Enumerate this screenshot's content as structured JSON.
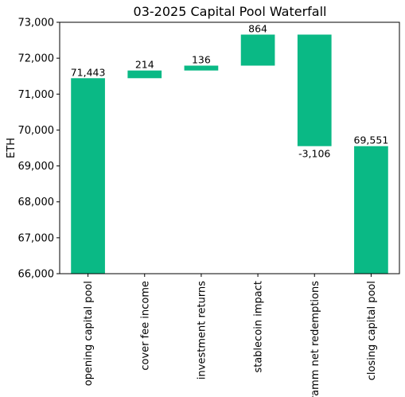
{
  "chart_data": {
    "type": "bar",
    "subtype": "waterfall",
    "title": "03-2025 Capital Pool Waterfall",
    "xlabel": "",
    "ylabel": "ETH",
    "ylim": [
      66000,
      73000
    ],
    "yticks": [
      66000,
      67000,
      68000,
      69000,
      70000,
      71000,
      72000,
      73000
    ],
    "ytick_labels": [
      "66,000",
      "67,000",
      "68,000",
      "69,000",
      "70,000",
      "71,000",
      "72,000",
      "73,000"
    ],
    "categories": [
      "opening capital pool",
      "cover fee income",
      "investment returns",
      "stablecoin impact",
      "ramm net redemptions",
      "closing capital pool"
    ],
    "values": [
      71443,
      214,
      136,
      864,
      -3106,
      69551
    ],
    "bar_labels": [
      "71,443",
      "214",
      "136",
      "864",
      "-3,106",
      "69,551"
    ],
    "kinds": [
      "total",
      "delta",
      "delta",
      "delta",
      "delta",
      "total"
    ],
    "color": "#0ab985",
    "grid": false,
    "legend": "none"
  }
}
